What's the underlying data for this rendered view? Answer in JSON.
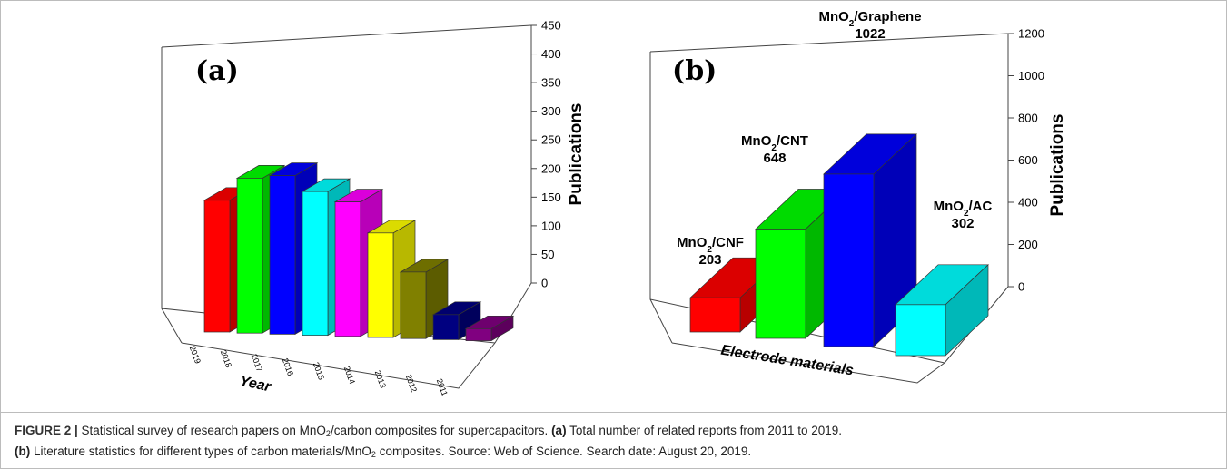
{
  "chart_data": [
    {
      "type": "bar",
      "style": "3d",
      "panel_label": "(a)",
      "xlabel": "Year",
      "ylabel": "Publications",
      "ylim": [
        0,
        450
      ],
      "yticks": [
        0,
        50,
        100,
        150,
        200,
        250,
        300,
        350,
        400,
        450
      ],
      "categories": [
        "2019",
        "2018",
        "2017",
        "2016",
        "2015",
        "2014",
        "2013",
        "2012",
        "2011"
      ],
      "values": [
        295,
        347,
        355,
        322,
        301,
        234,
        149,
        56,
        27
      ],
      "colors": [
        "#ff0000",
        "#00ff00",
        "#0000ff",
        "#00ffff",
        "#ff00ff",
        "#ffff00",
        "#808000",
        "#000080",
        "#800080"
      ]
    },
    {
      "type": "bar",
      "style": "3d",
      "panel_label": "(b)",
      "xlabel": "Electrode materials",
      "ylabel": "Publications",
      "ylim": [
        0,
        1200
      ],
      "yticks": [
        0,
        200,
        400,
        600,
        800,
        1000,
        1200
      ],
      "categories": [
        "MnO2/CNF",
        "MnO2/CNT",
        "MnO2/Graphene",
        "MnO2/AC"
      ],
      "values": [
        203,
        648,
        1022,
        302
      ],
      "bar_labels": [
        {
          "prefix": "MnO",
          "sub": "2",
          "suffix": "/CNF",
          "value": "203"
        },
        {
          "prefix": "MnO",
          "sub": "2",
          "suffix": "/CNT",
          "value": "648"
        },
        {
          "prefix": "MnO",
          "sub": "2",
          "suffix": "/Graphene",
          "value": "1022"
        },
        {
          "prefix": "MnO",
          "sub": "2",
          "suffix": "/AC",
          "value": "302"
        }
      ],
      "colors": [
        "#ff0000",
        "#00ff00",
        "#0000ff",
        "#00ffff"
      ]
    }
  ],
  "caption": {
    "figure_label": "FIGURE 2 |",
    "line1_pre": " Statistical survey of research papers on MnO",
    "line1_sub": "2",
    "line1_mid": "/carbon composites for supercapacitors. ",
    "line1_a": "(a)",
    "line1_post": " Total number of related reports from 2011 to 2019.",
    "line2_b": "(b)",
    "line2_pre": " Literature statistics for different types of carbon materials/MnO",
    "line2_sub": "2",
    "line2_post": " composites. Source: Web of Science. Search date: August 20, 2019."
  }
}
